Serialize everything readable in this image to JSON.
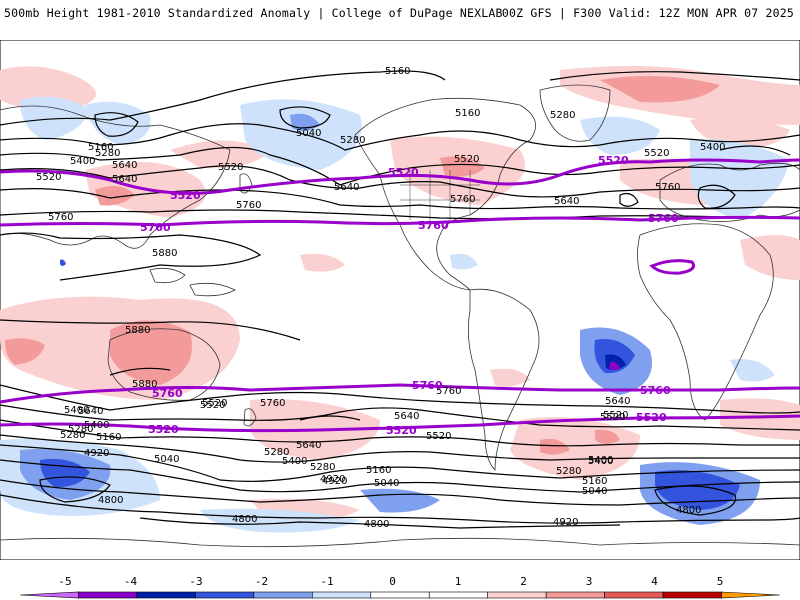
{
  "header": {
    "left_title": "500mb Height 1981-2010 Standardized Anomaly | College of DuPage NEXLAB",
    "right_title": "00Z GFS | F300 Valid: 12Z MON APR 07 2025"
  },
  "colorbar": {
    "ticks": [
      "-5",
      "-4",
      "-3",
      "-2",
      "-1",
      "0",
      "1",
      "2",
      "3",
      "4",
      "5"
    ],
    "colors": [
      "#cc66ff",
      "#8a00c8",
      "#0022aa",
      "#3355dd",
      "#7fa0ee",
      "#cfe2fb",
      "#ffffff",
      "#ffffff",
      "#fbd0d0",
      "#f39a9a",
      "#e85a5a",
      "#b80000",
      "#ff9a00"
    ]
  },
  "map": {
    "contour_color": "#000000",
    "highlight_contour_color": "#9900cc",
    "contour_labels": [
      "5160",
      "5160",
      "5040",
      "5280",
      "5280",
      "5400",
      "5520",
      "5520",
      "5520",
      "5640",
      "5640",
      "5760",
      "5760",
      "5880",
      "5880",
      "5880",
      "5760",
      "5640",
      "5160",
      "5280",
      "5400",
      "5520",
      "5640",
      "5400",
      "5280",
      "4920",
      "5040",
      "5160",
      "4800",
      "4920",
      "5040",
      "4800",
      "4800",
      "4920",
      "5280",
      "5400",
      "5640",
      "5520",
      "5640",
      "5520",
      "5280",
      "5400",
      "5400",
      "5640",
      "5760",
      "5760",
      "5520",
      "5760",
      "5640",
      "5520",
      "5520",
      "5400",
      "5160",
      "5040",
      "5280",
      "5160",
      "4920",
      "5280",
      "4800"
    ],
    "highlight_labels": [
      "5520",
      "5520",
      "5520",
      "5760",
      "5760",
      "5760",
      "5760",
      "5760",
      "5760",
      "5520",
      "5520",
      "5520"
    ]
  }
}
